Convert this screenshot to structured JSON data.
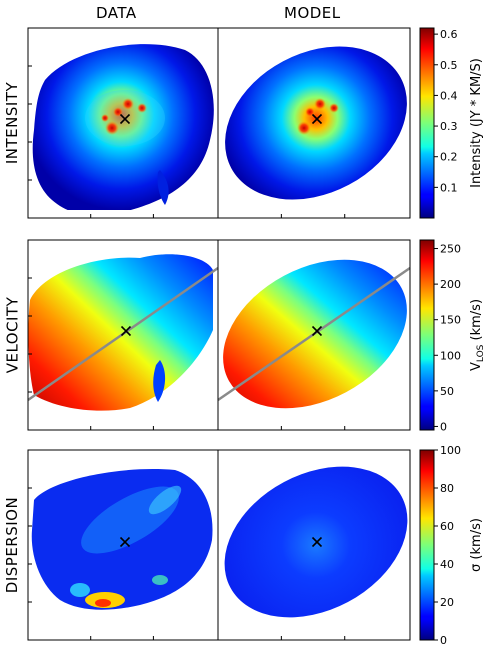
{
  "columns": {
    "data": "DATA",
    "model": "MODEL"
  },
  "rows": [
    {
      "label": "INTENSITY",
      "key": "intensity"
    },
    {
      "label": "VELOCITY",
      "key": "velocity"
    },
    {
      "label": "DISPERSION",
      "key": "dispersion"
    }
  ],
  "chart_data": [
    {
      "type": "heatmap",
      "name": "INTENSITY",
      "panels": [
        "DATA",
        "MODEL"
      ],
      "colormap": "jet",
      "colorbar": {
        "label_main": "Intensity (JY * KM/S)",
        "label_sub": "",
        "range": [
          0.0,
          0.62
        ],
        "ticks": [
          0.1,
          0.2,
          0.3,
          0.4,
          0.5,
          0.6
        ],
        "tick_labels": [
          "0.1",
          "0.2",
          "0.3",
          "0.4",
          "0.5",
          "0.6"
        ]
      },
      "center_marker": "x",
      "major_axis_line": false
    },
    {
      "type": "heatmap",
      "name": "VELOCITY",
      "panels": [
        "DATA",
        "MODEL"
      ],
      "colormap": "jet",
      "colorbar": {
        "label_main": "V",
        "label_sub": "LOS",
        "label_tail": " (km/s)",
        "range": [
          -5,
          262
        ],
        "ticks": [
          0,
          50,
          100,
          150,
          200,
          250
        ],
        "tick_labels": [
          "0",
          "50",
          "100",
          "150",
          "200",
          "250"
        ]
      },
      "center_marker": "x",
      "major_axis_line": true
    },
    {
      "type": "heatmap",
      "name": "DISPERSION",
      "panels": [
        "DATA",
        "MODEL"
      ],
      "colormap": "jet",
      "colorbar": {
        "label_main": "σ (km/s)",
        "label_sub": "",
        "range": [
          0,
          100
        ],
        "ticks": [
          0,
          20,
          40,
          60,
          80,
          100
        ],
        "tick_labels": [
          "0",
          "20",
          "40",
          "60",
          "80",
          "100"
        ]
      },
      "center_marker": "x",
      "major_axis_line": false
    }
  ]
}
